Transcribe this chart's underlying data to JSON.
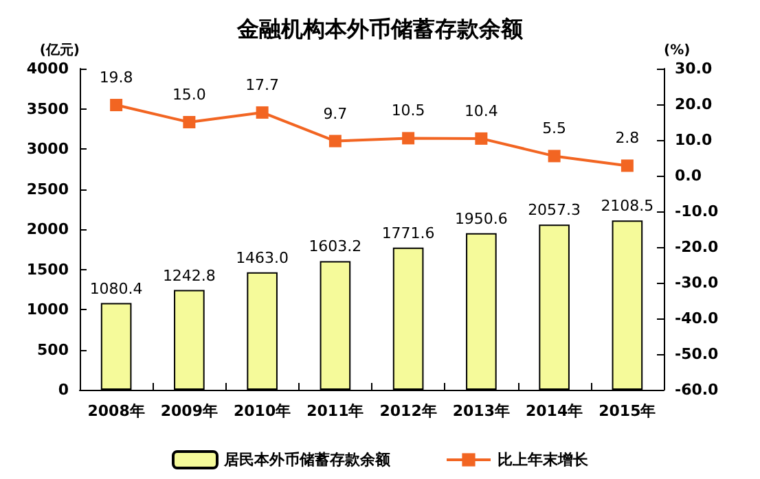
{
  "chart_data": {
    "type": "bar",
    "title": "金融机构本外币储蓄存款余额",
    "ylabel": "(亿元)",
    "y2label": "(%)",
    "categories": [
      "2008年",
      "2009年",
      "2010年",
      "2011年",
      "2012年",
      "2013年",
      "2014年",
      "2015年"
    ],
    "series": [
      {
        "name": "居民本外币储蓄存款余额",
        "color": "#f5fa9a",
        "values": [
          1080.4,
          1242.8,
          1463.0,
          1603.2,
          1771.6,
          1950.6,
          2057.3,
          2108.5
        ],
        "value_labels": [
          "1080.4",
          "1242.8",
          "1463.0",
          "1603.2",
          "1771.6",
          "1950.6",
          "2057.3",
          "2108.5"
        ]
      },
      {
        "name": "比上年末增长",
        "type": "line",
        "axis": "y2",
        "color": "#f26522",
        "marker": "square",
        "values": [
          19.8,
          15.0,
          17.7,
          9.7,
          10.5,
          10.4,
          5.5,
          2.8
        ],
        "value_labels": [
          "19.8",
          "15.0",
          "17.7",
          "9.7",
          "10.5",
          "10.4",
          "5.5",
          "2.8"
        ]
      }
    ],
    "ylim": [
      0,
      4000
    ],
    "yticks": [
      0,
      500,
      1000,
      1500,
      2000,
      2500,
      3000,
      3500,
      4000
    ],
    "y2lim": [
      -60,
      30
    ],
    "y2ticks": [
      {
        "value": -60,
        "label": "-60.0"
      },
      {
        "value": -50,
        "label": "-50.0"
      },
      {
        "value": -40,
        "label": "-40.0"
      },
      {
        "value": -30,
        "label": "-30.0"
      },
      {
        "value": -20,
        "label": "-20.0"
      },
      {
        "value": -10,
        "label": "-10.0"
      },
      {
        "value": 0,
        "label": "0.0"
      },
      {
        "value": 10,
        "label": "10.0"
      },
      {
        "value": 20,
        "label": "20.0"
      },
      {
        "value": 30,
        "label": "30.0"
      }
    ],
    "grid": false,
    "legend": "bottom"
  }
}
